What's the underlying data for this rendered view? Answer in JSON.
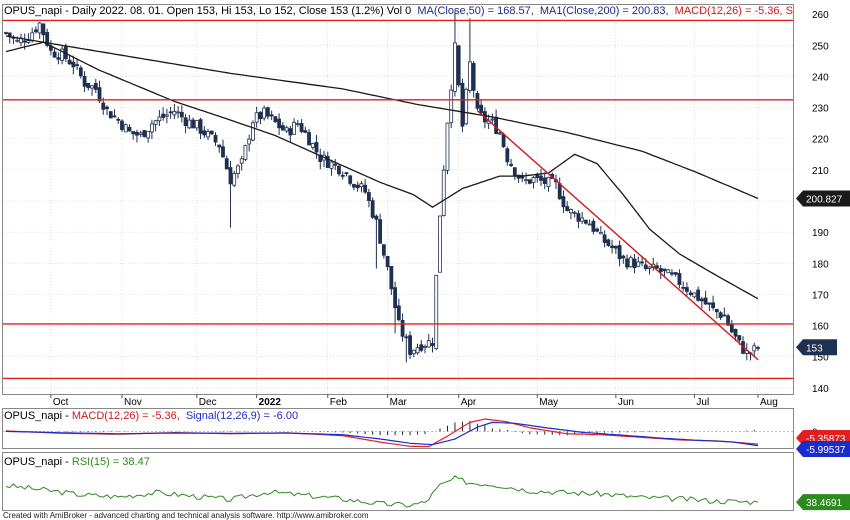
{
  "header": {
    "prefix": "OPUS_napi - Daily 2022. 08. 01. Open 153, Hi 153, Lo 152, Close 153 (1.2%) Vol 0",
    "ma50": "MA(Close,50) = 168.57,",
    "ma200": "MA1(Close,200) = 200.83,",
    "macd": "MACD(12,26) = -5.36, S"
  },
  "macd_header": {
    "prefix": "OPUS_napi - ",
    "macd": "MACD(12,26) = -5.36,",
    "signal": "Signal(12,26,9) = -6.00"
  },
  "rsi_header": {
    "prefix": "OPUS_napi - ",
    "rsi": "RSI(15) = 38.47"
  },
  "footer": "Created with AmiBroker - advanced charting and technical analysis software. http://www.amibroker.com",
  "price_tags": {
    "ma200": "200.827",
    "close": "153",
    "macd": "-5.35873",
    "signal": "-5.99537",
    "rsi": "38.4691"
  },
  "colors": {
    "candle": "#1f3050",
    "ma": "#1a1a1a",
    "horizontal_line": "#e0201c",
    "trendline": "#d01818",
    "macd_line": "#e02020",
    "signal_line": "#1a2bd0",
    "rsi_line": "#2d8a1e",
    "grid": "#c8c8c8"
  },
  "chart_data": [
    {
      "type": "candlestick",
      "x_labels": [
        "Oct",
        "Nov",
        "Dec",
        "2022",
        "Feb",
        "Mar",
        "Apr",
        "May",
        "Jun",
        "Jul",
        "Aug"
      ],
      "y_ticks": [
        140,
        150,
        160,
        170,
        180,
        190,
        200,
        210,
        220,
        230,
        240,
        250,
        260
      ],
      "ylim": [
        138,
        262
      ],
      "horizontal_lines": [
        258,
        232.5,
        160.5,
        143
      ],
      "trendline": {
        "from": [
          126,
          229
        ],
        "to": [
          201,
          149
        ]
      },
      "anchors": [
        [
          0,
          254
        ],
        [
          3,
          251
        ],
        [
          6,
          253
        ],
        [
          9,
          257
        ],
        [
          12,
          248
        ],
        [
          15,
          247
        ],
        [
          18,
          244
        ],
        [
          21,
          238
        ],
        [
          24,
          236
        ],
        [
          27,
          229
        ],
        [
          30,
          226
        ],
        [
          33,
          222
        ],
        [
          36,
          221
        ],
        [
          39,
          225
        ],
        [
          42,
          227
        ],
        [
          45,
          229
        ],
        [
          48,
          226
        ],
        [
          51,
          224
        ],
        [
          54,
          221
        ],
        [
          57,
          218
        ],
        [
          60,
          207
        ],
        [
          63,
          212
        ],
        [
          66,
          226
        ],
        [
          69,
          228
        ],
        [
          72,
          225
        ],
        [
          75,
          222
        ],
        [
          78,
          225
        ],
        [
          81,
          220
        ],
        [
          84,
          214
        ],
        [
          87,
          212
        ],
        [
          90,
          210
        ],
        [
          93,
          206
        ],
        [
          96,
          203
        ],
        [
          99,
          193
        ],
        [
          102,
          178
        ],
        [
          105,
          160
        ],
        [
          108,
          152
        ],
        [
          111,
          154
        ],
        [
          114,
          155
        ],
        [
          116,
          196
        ],
        [
          118,
          226
        ],
        [
          120,
          249
        ],
        [
          122,
          224
        ],
        [
          124,
          244
        ],
        [
          126,
          228
        ],
        [
          128,
          226
        ],
        [
          130,
          225
        ],
        [
          132,
          222
        ],
        [
          134,
          214
        ],
        [
          136,
          210
        ],
        [
          138,
          206
        ],
        [
          141,
          207
        ],
        [
          144,
          206
        ],
        [
          147,
          205
        ],
        [
          150,
          197
        ],
        [
          153,
          195
        ],
        [
          156,
          193
        ],
        [
          159,
          188
        ],
        [
          162,
          185
        ],
        [
          165,
          181
        ],
        [
          168,
          180
        ],
        [
          171,
          178
        ],
        [
          174,
          178
        ],
        [
          177,
          176
        ],
        [
          180,
          174
        ],
        [
          183,
          171
        ],
        [
          186,
          168
        ],
        [
          189,
          165
        ],
        [
          192,
          163
        ],
        [
          194,
          158
        ],
        [
          196,
          154
        ],
        [
          198,
          151
        ],
        [
          200,
          152
        ],
        [
          201,
          153
        ]
      ],
      "series": [
        {
          "name": "MA(Close,50)",
          "values": [
            [
              0,
              248
            ],
            [
              10,
              251
            ],
            [
              25,
              242
            ],
            [
              45,
              232
            ],
            [
              60,
              226
            ],
            [
              72,
              221
            ],
            [
              85,
              214
            ],
            [
              100,
              206
            ],
            [
              109,
              202
            ],
            [
              114,
              198
            ],
            [
              122,
              204
            ],
            [
              132,
              208
            ],
            [
              138,
              208
            ],
            [
              145,
              209
            ],
            [
              152,
              215
            ],
            [
              158,
              212
            ],
            [
              165,
              202
            ],
            [
              172,
              191
            ],
            [
              180,
              183
            ],
            [
              190,
              176
            ],
            [
              201,
              168.6
            ]
          ]
        },
        {
          "name": "MA1(Close,200)",
          "values": [
            [
              0,
              253
            ],
            [
              30,
              247
            ],
            [
              60,
              241
            ],
            [
              90,
              236
            ],
            [
              110,
              231
            ],
            [
              130,
              227
            ],
            [
              150,
              222
            ],
            [
              170,
              216
            ],
            [
              185,
              209
            ],
            [
              201,
              200.8
            ]
          ]
        }
      ]
    },
    {
      "type": "line",
      "name": "MACD(12,26)",
      "ylim": [
        -7,
        9
      ],
      "zero_line": 0,
      "series": [
        {
          "name": "MACD(12,26)",
          "values": [
            [
              0,
              0.2
            ],
            [
              15,
              -0.8
            ],
            [
              30,
              -1.2
            ],
            [
              45,
              -0.5
            ],
            [
              60,
              -1.0
            ],
            [
              75,
              -0.6
            ],
            [
              90,
              -1.8
            ],
            [
              100,
              -4.5
            ],
            [
              108,
              -6.3
            ],
            [
              113,
              -6.4
            ],
            [
              118,
              -2.0
            ],
            [
              124,
              3.8
            ],
            [
              128,
              5.2
            ],
            [
              134,
              4.0
            ],
            [
              140,
              1.5
            ],
            [
              150,
              -1.0
            ],
            [
              160,
              -1.5
            ],
            [
              170,
              -2.5
            ],
            [
              180,
              -3.6
            ],
            [
              190,
              -4.0
            ],
            [
              201,
              -5.36
            ]
          ]
        },
        {
          "name": "Signal(12,26,9)",
          "values": [
            [
              0,
              0.0
            ],
            [
              15,
              -0.6
            ],
            [
              30,
              -1.0
            ],
            [
              45,
              -0.7
            ],
            [
              60,
              -0.8
            ],
            [
              75,
              -0.7
            ],
            [
              90,
              -1.4
            ],
            [
              100,
              -3.2
            ],
            [
              108,
              -5.0
            ],
            [
              114,
              -5.6
            ],
            [
              120,
              -3.2
            ],
            [
              126,
              1.8
            ],
            [
              130,
              3.8
            ],
            [
              136,
              3.4
            ],
            [
              144,
              1.6
            ],
            [
              154,
              -0.4
            ],
            [
              164,
              -1.5
            ],
            [
              174,
              -2.7
            ],
            [
              184,
              -3.7
            ],
            [
              194,
              -4.4
            ],
            [
              201,
              -6.0
            ]
          ]
        }
      ]
    },
    {
      "type": "line",
      "name": "RSI(15)",
      "ylim": [
        30,
        90
      ],
      "series": [
        {
          "name": "RSI(15)",
          "values": [
            [
              0,
              62
            ],
            [
              10,
              56
            ],
            [
              20,
              49
            ],
            [
              30,
              46
            ],
            [
              40,
              52
            ],
            [
              50,
              47
            ],
            [
              60,
              42
            ],
            [
              70,
              53
            ],
            [
              80,
              48
            ],
            [
              90,
              43
            ],
            [
              100,
              36
            ],
            [
              108,
              34
            ],
            [
              112,
              38
            ],
            [
              116,
              62
            ],
            [
              120,
              72
            ],
            [
              124,
              66
            ],
            [
              130,
              64
            ],
            [
              140,
              55
            ],
            [
              150,
              52
            ],
            [
              160,
              50
            ],
            [
              170,
              45
            ],
            [
              180,
              43
            ],
            [
              190,
              40
            ],
            [
              201,
              38.47
            ]
          ]
        }
      ]
    }
  ]
}
